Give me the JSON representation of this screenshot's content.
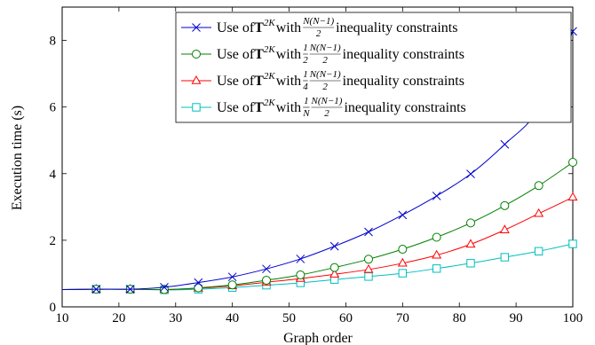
{
  "chart_data": {
    "type": "line",
    "xlabel": "Graph order",
    "ylabel": "Execution time (s)",
    "xlim": [
      10,
      100
    ],
    "ylim": [
      0,
      9
    ],
    "xticks": [
      10,
      20,
      30,
      40,
      50,
      60,
      70,
      80,
      90,
      100
    ],
    "yticks": [
      0,
      2,
      4,
      6,
      8
    ],
    "grid": false,
    "legend_position": "top-right",
    "x": [
      16,
      22,
      28,
      34,
      40,
      46,
      52,
      58,
      64,
      70,
      76,
      82,
      88,
      94,
      100
    ],
    "series": [
      {
        "name": "Use of T^{2K} with N(N−1)/2 inequality constraints",
        "legend": {
          "pre": "Use of ",
          "bold": "T",
          "sup": "2K",
          "mid": " with ",
          "coef": "",
          "num": "N(N−1)",
          "den": "2",
          "post": " inequality constraints"
        },
        "color": "#0000cc",
        "marker": "x",
        "values": [
          0.53,
          0.53,
          0.59,
          0.73,
          0.9,
          1.14,
          1.44,
          1.82,
          2.25,
          2.76,
          3.33,
          3.99,
          4.88,
          5.95,
          8.27
        ]
      },
      {
        "name": "Use of T^{2K} with 1/2 N(N−1)/2 inequality constraints",
        "legend": {
          "pre": "Use of ",
          "bold": "T",
          "sup": "2K",
          "mid": " with ",
          "coef": "1/2",
          "num": "N(N−1)",
          "den": "2",
          "post": " inequality constraints"
        },
        "color": "#008000",
        "marker": "circle",
        "values": [
          0.53,
          0.53,
          0.52,
          0.57,
          0.66,
          0.8,
          0.96,
          1.18,
          1.43,
          1.73,
          2.09,
          2.52,
          3.04,
          3.64,
          4.34
        ]
      },
      {
        "name": "Use of T^{2K} with 1/4 N(N−1)/2 inequality constraints",
        "legend": {
          "pre": "Use of ",
          "bold": "T",
          "sup": "2K",
          "mid": " with ",
          "coef": "1/4",
          "num": "N(N−1)",
          "den": "2",
          "post": " inequality constraints"
        },
        "color": "#ff0000",
        "marker": "triangle",
        "values": [
          0.53,
          0.53,
          0.52,
          0.56,
          0.63,
          0.74,
          0.85,
          0.98,
          1.12,
          1.31,
          1.55,
          1.88,
          2.31,
          2.8,
          3.29
        ]
      },
      {
        "name": "Use of T^{2K} with 1/N N(N−1)/2 inequality constraints",
        "legend": {
          "pre": "Use of ",
          "bold": "T",
          "sup": "2K",
          "mid": " with ",
          "coef": "1/N",
          "num": "N(N−1)",
          "den": "2",
          "post": " inequality constraints"
        },
        "color": "#00bfbf",
        "marker": "square",
        "values": [
          0.53,
          0.53,
          0.51,
          0.53,
          0.58,
          0.65,
          0.72,
          0.82,
          0.91,
          1.01,
          1.15,
          1.31,
          1.49,
          1.67,
          1.89
        ]
      }
    ]
  }
}
